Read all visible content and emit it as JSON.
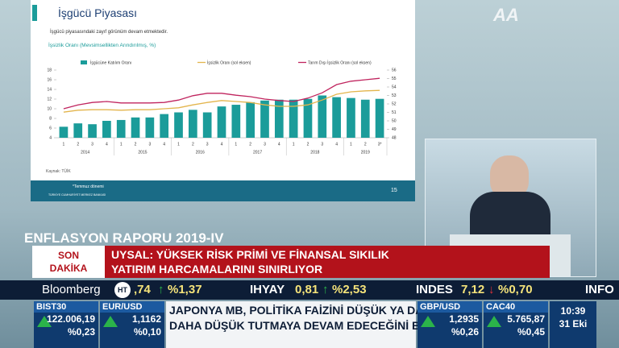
{
  "slide": {
    "title": "İşgücü Piyasası",
    "bullet": "İşgücü piyasasındaki zayıf görünüm devam etmektedir.",
    "source": "Kaynak: TÜİK",
    "footnote": "*Temmuz dönemi",
    "page": "15",
    "bank": "TÜRKİYE CUMHURİYET MERKEZ BANKASI"
  },
  "chart_data": {
    "type": "bar",
    "title": "İşsizlik Oranı (Mevsimsellikten Arındırılmış, %)",
    "categories": [
      "1",
      "2",
      "3",
      "4",
      "1",
      "2",
      "3",
      "4",
      "1",
      "2",
      "3",
      "4",
      "1",
      "2",
      "3",
      "4",
      "1",
      "2",
      "3",
      "4",
      "1",
      "2",
      "3*"
    ],
    "years": [
      "2014",
      "2015",
      "2016",
      "2017",
      "2018",
      "2019"
    ],
    "series": [
      {
        "name": "İşgücüne Katılım Oranı",
        "type": "bar",
        "axis": "y2",
        "color": "#1b9c9a",
        "values": [
          49.3,
          49.7,
          49.6,
          50.0,
          50.1,
          50.4,
          50.4,
          50.8,
          51.0,
          51.3,
          51.0,
          51.7,
          51.9,
          52.2,
          52.4,
          52.5,
          52.5,
          52.6,
          53.0,
          52.8,
          52.7,
          52.5,
          52.6
        ]
      },
      {
        "name": "İşsizlik Oranı (sol eksen)",
        "type": "line",
        "color": "#e3b54d",
        "values": [
          9.3,
          9.7,
          9.8,
          9.8,
          9.7,
          9.8,
          9.8,
          10.0,
          10.2,
          10.8,
          11.3,
          11.7,
          11.5,
          11.3,
          10.8,
          10.5,
          10.5,
          10.8,
          11.8,
          13.0,
          13.5,
          13.7,
          13.8
        ]
      },
      {
        "name": "Tarım Dışı İşsizlik Oranı (sol eksen)",
        "type": "line",
        "color": "#c0245e",
        "values": [
          10.0,
          10.8,
          11.3,
          11.5,
          11.2,
          11.2,
          11.2,
          11.3,
          11.8,
          12.7,
          13.2,
          13.2,
          12.8,
          12.5,
          12.0,
          11.7,
          11.5,
          12.2,
          13.3,
          15.0,
          15.7,
          16.0,
          16.3
        ]
      }
    ],
    "ylim": [
      4,
      18
    ],
    "yticks": [
      4,
      6,
      8,
      10,
      12,
      14,
      16,
      18
    ],
    "y2lim": [
      48,
      56
    ],
    "y2ticks": [
      48,
      49,
      50,
      51,
      52,
      53,
      54,
      55,
      56
    ]
  },
  "broadcast": {
    "logo": "AA",
    "program": "ENFLASYON RAPORU 2019-IV",
    "breaking_label": [
      "SON",
      "DAKİKA"
    ],
    "headline": [
      "UYSAL: YÜKSEK RİSK PRİMİ VE FİNANSAL SIKILIK",
      "YATIRIM HARCAMALARINI SINIRLIYOR"
    ],
    "ticker": {
      "brand": "Bloomberg",
      "channel": "HT",
      "items": [
        {
          "value": ",74",
          "change": "%1,37"
        },
        {
          "name": "IHYAY",
          "value": "0,81",
          "change": "%2,53"
        },
        {
          "name": "INDES",
          "value": "7,12",
          "change": "%0,70"
        },
        {
          "name": "INFO"
        }
      ]
    },
    "markets": [
      {
        "name": "BIST30",
        "value": "122.006,19",
        "change": "%0,23"
      },
      {
        "name": "EUR/USD",
        "value": "1,1162",
        "change": "%0,10"
      },
      {
        "name": "GBP/USD",
        "value": "1,2935",
        "change": "%0,26"
      },
      {
        "name": "CAC40",
        "value": "5.765,87",
        "change": "%0,45"
      }
    ],
    "news": [
      "JAPONYA MB, POLİTİKA FAİZİNİ DÜŞÜK YA DA",
      "DAHA DÜŞÜK TUTMAYA DEVAM EDECEĞİNİ BELİRTTİ"
    ],
    "time": "10:39",
    "date": "31 Eki"
  }
}
